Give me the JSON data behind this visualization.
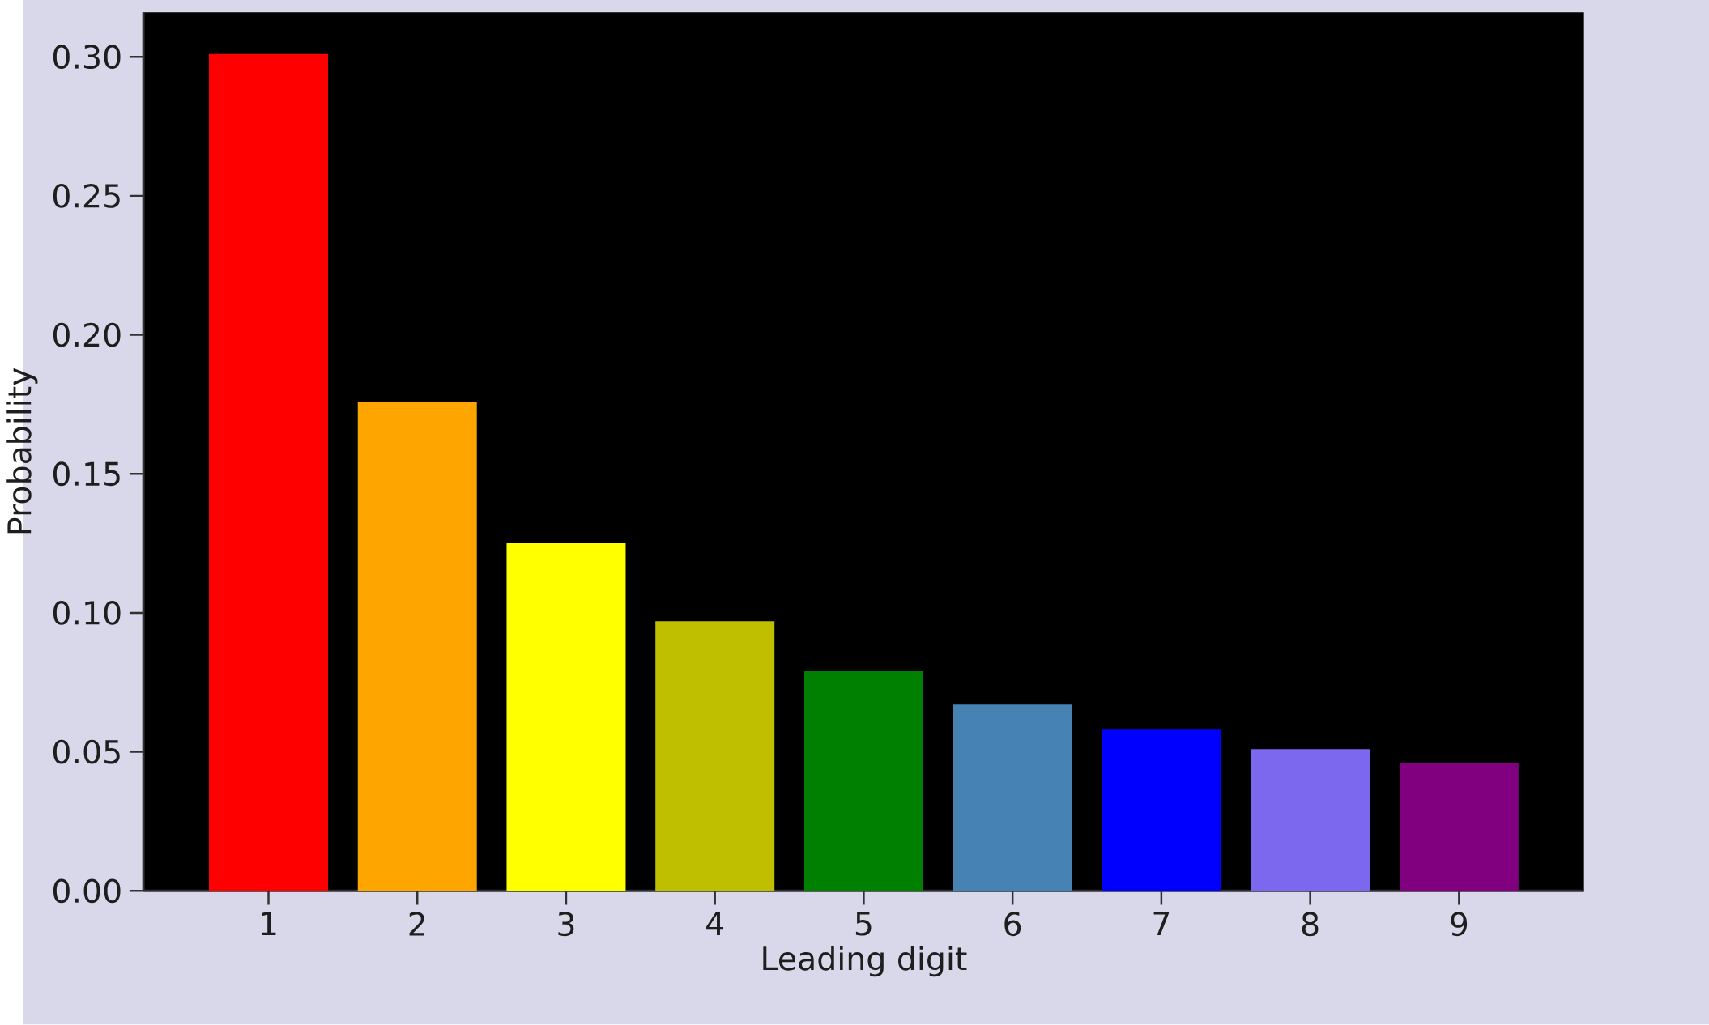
{
  "chart_data": {
    "type": "bar",
    "xlabel": "Leading digit",
    "ylabel": "Probability",
    "categories": [
      "1",
      "2",
      "3",
      "4",
      "5",
      "6",
      "7",
      "8",
      "9"
    ],
    "values": [
      0.301,
      0.176,
      0.125,
      0.097,
      0.079,
      0.067,
      0.058,
      0.051,
      0.046
    ],
    "colors": [
      "#ff0000",
      "#ffa500",
      "#ffff00",
      "#bfbf00",
      "#008000",
      "#4682b4",
      "#0000ff",
      "#7b68ee",
      "#800080"
    ],
    "ylim": [
      0,
      0.316
    ],
    "yticks": [
      {
        "value": 0,
        "label": "0.00"
      },
      {
        "value": 0.05,
        "label": "0.05"
      },
      {
        "value": 0.1,
        "label": "0.10"
      },
      {
        "value": 0.15,
        "label": "0.15"
      },
      {
        "value": 0.2,
        "label": "0.20"
      },
      {
        "value": 0.25,
        "label": "0.25"
      },
      {
        "value": 0.3,
        "label": "0.30"
      }
    ]
  }
}
